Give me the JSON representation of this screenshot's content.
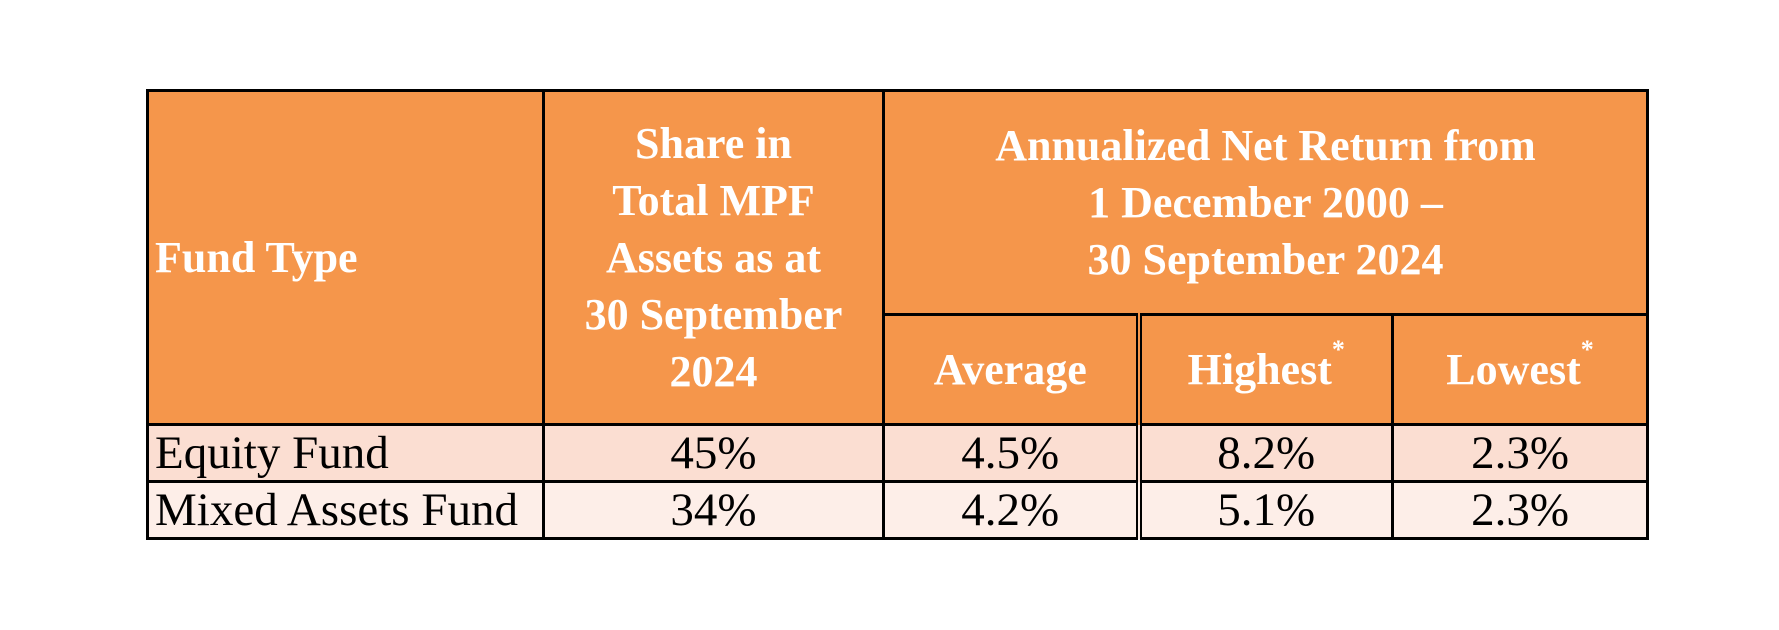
{
  "table": {
    "headers": {
      "fund_type": "Fund Type",
      "share_lines": [
        "Share in",
        "Total MPF",
        "Assets as at",
        "30 September",
        "2024"
      ],
      "return_lines": [
        "Annualized Net Return from",
        "1 December 2000 –",
        "30 September 2024"
      ],
      "average": "Average",
      "highest": "Highest",
      "highest_mark": "*",
      "lowest": "Lowest",
      "lowest_mark": "*"
    },
    "rows": [
      {
        "fund_type": "Equity Fund",
        "share": "45%",
        "average": "4.5%",
        "highest": "8.2%",
        "lowest": "2.3%"
      },
      {
        "fund_type": "Mixed Assets Fund",
        "share": "34%",
        "average": "4.2%",
        "highest": "5.1%",
        "lowest": "2.3%"
      }
    ]
  },
  "colors": {
    "header_bg": "#F5964B",
    "row1_bg": "#FBDED2",
    "row2_bg": "#FDEEE8"
  }
}
